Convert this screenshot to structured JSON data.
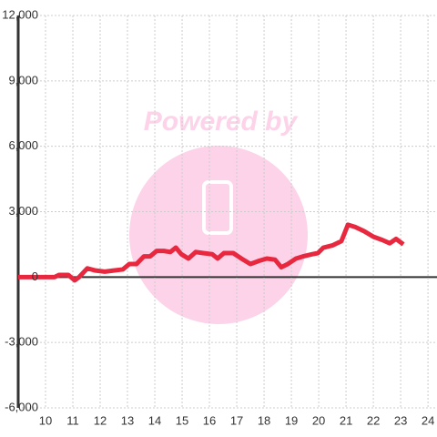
{
  "chart_data": {
    "type": "line",
    "watermark": "Powered by",
    "x": [
      9,
      10.33,
      10.5,
      10.83,
      11.07,
      11.23,
      11.53,
      11.83,
      12.17,
      12.5,
      12.83,
      13.07,
      13.33,
      13.6,
      13.83,
      14.07,
      14.33,
      14.57,
      14.77,
      14.97,
      15.23,
      15.5,
      15.77,
      16.1,
      16.3,
      16.53,
      16.87,
      17.17,
      17.5,
      17.83,
      18.1,
      18.4,
      18.63,
      18.87,
      19.17,
      19.43,
      19.77,
      19.97,
      20.17,
      20.5,
      20.83,
      21.07,
      21.33,
      21.67,
      22.0,
      22.33,
      22.6,
      22.83,
      23.1
    ],
    "series": [
      {
        "color": "#e8283f",
        "values": [
          0,
          0,
          100,
          100,
          -150,
          0,
          400,
          300,
          250,
          300,
          350,
          600,
          600,
          950,
          950,
          1200,
          1200,
          1150,
          1350,
          1050,
          850,
          1150,
          1100,
          1050,
          850,
          1100,
          1100,
          850,
          600,
          750,
          850,
          800,
          450,
          600,
          850,
          950,
          1050,
          1100,
          1350,
          1450,
          1650,
          2400,
          2300,
          2100,
          1850,
          1700,
          1550,
          1750,
          1500
        ]
      }
    ],
    "xlim": [
      9,
      24.33
    ],
    "xticks": [
      10,
      11,
      12,
      13,
      14,
      15,
      16,
      17,
      18,
      19,
      20,
      21,
      22,
      23,
      24
    ],
    "ylim": [
      -6000,
      12000
    ],
    "yticks": [
      {
        "value": -6000,
        "label": "-6,000"
      },
      {
        "value": -3000,
        "label": "-3,000"
      },
      0,
      {
        "value": 3000,
        "label": "3,000"
      },
      {
        "value": 6000,
        "label": "6,000"
      },
      {
        "value": 9000,
        "label": "9,000"
      },
      {
        "value": 12000,
        "label": "12,000"
      }
    ],
    "grid": true
  }
}
